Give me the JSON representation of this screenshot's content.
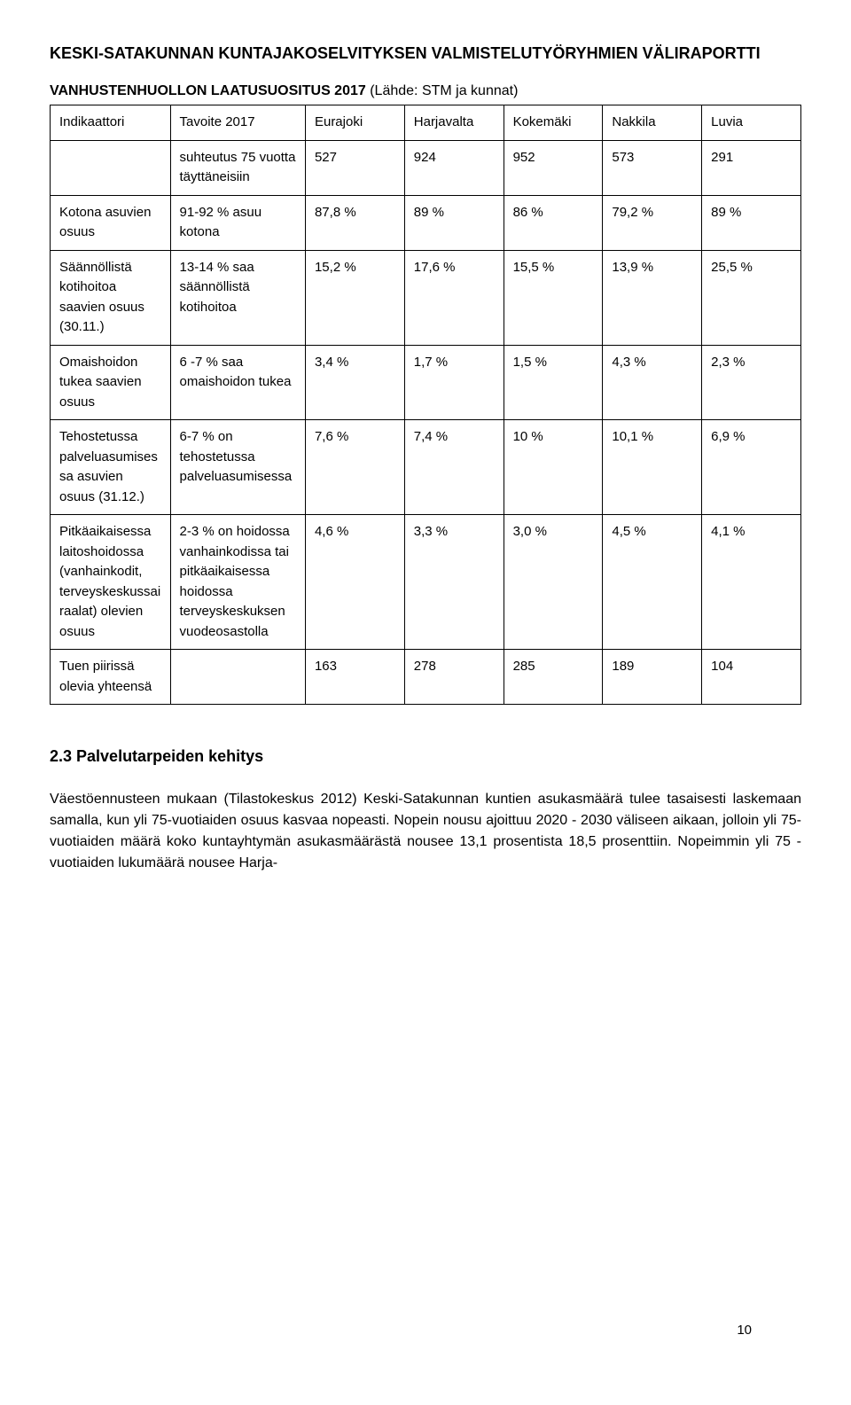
{
  "header": {
    "title": "KESKI-SATAKUNNAN KUNTAJAKOSELVITYKSEN VALMISTELUTYÖRYHMIEN VÄLIRAPORTTI"
  },
  "subtitle": {
    "bold": "VANHUSTENHUOLLON LAATUSUOSITUS 2017",
    "rest": " (Lähde: STM ja kunnat)"
  },
  "table": {
    "head": {
      "c0": "Indikaattori",
      "c1": "Tavoite 2017",
      "c2": "Eurajoki",
      "c3": "Harjavalta",
      "c4": "Kokemäki",
      "c5": "Nakkila",
      "c6": "Luvia"
    },
    "rows": [
      {
        "c0": "",
        "c1": "suhteutus 75 vuotta täyttäneisiin",
        "c2": "527",
        "c3": "924",
        "c4": "952",
        "c5": "573",
        "c6": "291"
      },
      {
        "c0": "Kotona asuvien osuus",
        "c1": "91-92 % asuu kotona",
        "c2": "87,8 %",
        "c3": "89 %",
        "c4": "86 %",
        "c5": "79,2 %",
        "c6": "89 %"
      },
      {
        "c0": "Säännöllistä kotihoitoa saavien osuus (30.11.)",
        "c1": "13-14 % saa säännöllistä kotihoitoa",
        "c2": "15,2 %",
        "c3": "17,6 %",
        "c4": "15,5 %",
        "c5": "13,9 %",
        "c6": "25,5 %"
      },
      {
        "c0": "Omaishoidon tukea saavien osuus",
        "c1": "6 -7 % saa omaishoidon tukea",
        "c2": "3,4 %",
        "c3": "1,7 %",
        "c4": "1,5 %",
        "c5": "4,3 %",
        "c6": "2,3 %"
      },
      {
        "c0": "Tehostetussa palveluasumisessa asuvien osuus (31.12.)",
        "c1": "6-7 % on tehostetussa palveluasumisessa",
        "c2": "7,6 %",
        "c3": "7,4 %",
        "c4": "10 %",
        "c5": "10,1 %",
        "c6": "6,9 %"
      },
      {
        "c0": "Pitkäaikaisessa laitoshoidossa (vanhainkodit, terveyskeskussairaalat) olevien osuus",
        "c1": "2-3 % on hoidossa vanhainkodissa tai pitkäaikaisessa hoidossa terveyskeskuksen vuodeosastolla",
        "c2": "4,6 %",
        "c3": "3,3 %",
        "c4": "3,0 %",
        "c5": "4,5 %",
        "c6": "4,1 %"
      },
      {
        "c0": "Tuen piirissä olevia yhteensä",
        "c1": "",
        "c2": "163",
        "c3": "278",
        "c4": "285",
        "c5": "189",
        "c6": "104"
      }
    ]
  },
  "section": {
    "heading": "2.3 Palvelutarpeiden kehitys",
    "body": "Väestöennusteen mukaan (Tilastokeskus 2012) Keski-Satakunnan kuntien asukasmäärä tulee tasaisesti laskemaan samalla, kun yli 75-vuotiaiden osuus kasvaa nopeasti. Nopein nousu ajoittuu 2020 - 2030 väliseen aikaan, jolloin yli 75-vuotiaiden määrä koko kuntayhtymän asukasmäärästä nousee 13,1 prosentista 18,5 prosenttiin. Nopeimmin yli 75 -vuotiaiden lukumäärä nousee Harja-"
  },
  "page_number": "10"
}
